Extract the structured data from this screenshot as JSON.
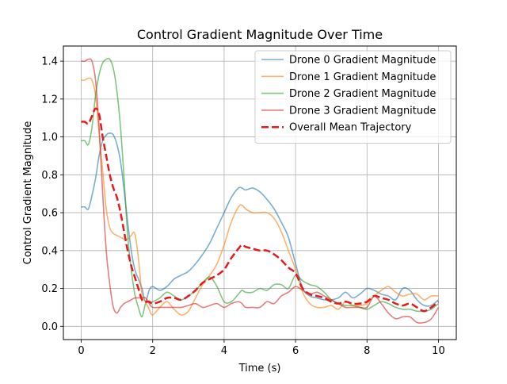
{
  "chart_data": {
    "type": "line",
    "title": "Control Gradient Magnitude Over Time",
    "xlabel": "Time (s)",
    "ylabel": "Control Gradient Magnitude",
    "xlim": [
      -0.5,
      10.5
    ],
    "ylim": [
      -0.07,
      1.48
    ],
    "xticks": [
      0,
      2,
      4,
      6,
      8,
      10
    ],
    "yticks": [
      0.0,
      0.2,
      0.4,
      0.6,
      0.8,
      1.0,
      1.2,
      1.4
    ],
    "xtick_labels": [
      "0",
      "2",
      "4",
      "6",
      "8",
      "10"
    ],
    "ytick_labels": [
      "0.0",
      "0.2",
      "0.4",
      "0.6",
      "0.8",
      "1.0",
      "1.2",
      "1.4"
    ],
    "grid": true,
    "legend_position": "top-right",
    "series": [
      {
        "name": "Drone 0 Gradient Magnitude",
        "color": "#1f77b4",
        "style": "solid",
        "x": [
          0,
          0.1,
          0.2,
          0.3,
          0.4,
          0.5,
          0.6,
          0.7,
          0.8,
          0.9,
          1.0,
          1.1,
          1.2,
          1.3,
          1.4,
          1.5,
          1.6,
          1.7,
          1.8,
          1.9,
          2.0,
          2.2,
          2.4,
          2.6,
          2.8,
          3.0,
          3.2,
          3.4,
          3.6,
          3.8,
          4.0,
          4.2,
          4.4,
          4.5,
          4.6,
          4.8,
          5.0,
          5.2,
          5.4,
          5.6,
          5.8,
          6.0,
          6.2,
          6.4,
          6.6,
          6.8,
          7.0,
          7.2,
          7.4,
          7.6,
          7.8,
          8.0,
          8.2,
          8.4,
          8.6,
          8.8,
          9.0,
          9.2,
          9.4,
          9.6,
          9.8,
          10.0
        ],
        "y": [
          0.63,
          0.63,
          0.62,
          0.69,
          0.78,
          0.9,
          0.98,
          1.01,
          1.02,
          1.01,
          0.96,
          0.87,
          0.72,
          0.55,
          0.4,
          0.3,
          0.25,
          0.2,
          0.13,
          0.19,
          0.21,
          0.19,
          0.21,
          0.25,
          0.27,
          0.29,
          0.33,
          0.38,
          0.44,
          0.52,
          0.6,
          0.68,
          0.73,
          0.73,
          0.72,
          0.73,
          0.71,
          0.67,
          0.62,
          0.55,
          0.47,
          0.33,
          0.2,
          0.16,
          0.15,
          0.14,
          0.14,
          0.15,
          0.18,
          0.15,
          0.17,
          0.2,
          0.19,
          0.17,
          0.16,
          0.14,
          0.2,
          0.19,
          0.14,
          0.11,
          0.11,
          0.14
        ]
      },
      {
        "name": "Drone 1 Gradient Magnitude",
        "color": "#ff7f0e",
        "style": "solid",
        "x": [
          0,
          0.1,
          0.2,
          0.3,
          0.4,
          0.5,
          0.6,
          0.7,
          0.8,
          0.9,
          1.0,
          1.1,
          1.2,
          1.3,
          1.4,
          1.5,
          1.6,
          1.7,
          1.8,
          1.9,
          2.0,
          2.2,
          2.4,
          2.6,
          2.8,
          3.0,
          3.2,
          3.4,
          3.6,
          3.8,
          4.0,
          4.2,
          4.4,
          4.5,
          4.6,
          4.8,
          5.0,
          5.2,
          5.4,
          5.6,
          5.8,
          6.0,
          6.2,
          6.4,
          6.6,
          6.8,
          7.0,
          7.2,
          7.4,
          7.6,
          7.8,
          8.0,
          8.2,
          8.4,
          8.6,
          8.8,
          9.0,
          9.2,
          9.4,
          9.6,
          9.8,
          10.0
        ],
        "y": [
          1.3,
          1.3,
          1.31,
          1.3,
          1.22,
          1.02,
          0.82,
          0.62,
          0.52,
          0.49,
          0.48,
          0.47,
          0.46,
          0.46,
          0.48,
          0.49,
          0.36,
          0.17,
          0.13,
          0.09,
          0.06,
          0.1,
          0.13,
          0.09,
          0.06,
          0.08,
          0.15,
          0.22,
          0.27,
          0.33,
          0.43,
          0.55,
          0.63,
          0.64,
          0.62,
          0.6,
          0.6,
          0.6,
          0.57,
          0.5,
          0.4,
          0.3,
          0.18,
          0.12,
          0.1,
          0.1,
          0.11,
          0.09,
          0.13,
          0.11,
          0.11,
          0.12,
          0.16,
          0.19,
          0.21,
          0.18,
          0.16,
          0.17,
          0.17,
          0.14,
          0.16,
          0.16
        ]
      },
      {
        "name": "Drone 2 Gradient Magnitude",
        "color": "#2ca02c",
        "style": "solid",
        "x": [
          0,
          0.1,
          0.2,
          0.3,
          0.4,
          0.5,
          0.6,
          0.7,
          0.8,
          0.9,
          1.0,
          1.1,
          1.2,
          1.3,
          1.4,
          1.5,
          1.6,
          1.7,
          1.8,
          1.9,
          2.0,
          2.2,
          2.4,
          2.6,
          2.8,
          3.0,
          3.2,
          3.4,
          3.6,
          3.8,
          4.0,
          4.2,
          4.4,
          4.5,
          4.6,
          4.8,
          5.0,
          5.2,
          5.4,
          5.6,
          5.8,
          6.0,
          6.2,
          6.4,
          6.6,
          6.8,
          7.0,
          7.2,
          7.4,
          7.6,
          7.8,
          8.0,
          8.2,
          8.4,
          8.6,
          8.8,
          9.0,
          9.2,
          9.4,
          9.6,
          9.8,
          10.0
        ],
        "y": [
          0.98,
          0.98,
          0.96,
          1.05,
          1.22,
          1.33,
          1.39,
          1.41,
          1.41,
          1.36,
          1.24,
          1.05,
          0.78,
          0.48,
          0.3,
          0.17,
          0.1,
          0.05,
          0.12,
          0.13,
          0.13,
          0.15,
          0.18,
          0.16,
          0.14,
          0.16,
          0.19,
          0.23,
          0.26,
          0.21,
          0.13,
          0.13,
          0.17,
          0.19,
          0.18,
          0.18,
          0.2,
          0.19,
          0.22,
          0.22,
          0.2,
          0.27,
          0.24,
          0.22,
          0.21,
          0.18,
          0.14,
          0.12,
          0.11,
          0.11,
          0.1,
          0.09,
          0.11,
          0.13,
          0.12,
          0.1,
          0.09,
          0.09,
          0.08,
          0.08,
          0.09,
          0.12
        ]
      },
      {
        "name": "Drone 3 Gradient Magnitude",
        "color": "#d62728",
        "style": "solid",
        "x": [
          0,
          0.1,
          0.2,
          0.3,
          0.4,
          0.5,
          0.6,
          0.7,
          0.8,
          0.9,
          1.0,
          1.1,
          1.2,
          1.3,
          1.4,
          1.5,
          1.6,
          1.7,
          1.8,
          1.9,
          2.0,
          2.2,
          2.4,
          2.6,
          2.8,
          3.0,
          3.2,
          3.4,
          3.6,
          3.8,
          4.0,
          4.2,
          4.4,
          4.5,
          4.6,
          4.8,
          5.0,
          5.2,
          5.4,
          5.6,
          5.8,
          6.0,
          6.2,
          6.4,
          6.6,
          6.8,
          7.0,
          7.2,
          7.4,
          7.6,
          7.8,
          8.0,
          8.2,
          8.4,
          8.6,
          8.8,
          9.0,
          9.2,
          9.4,
          9.6,
          9.8,
          10.0
        ],
        "y": [
          1.4,
          1.4,
          1.41,
          1.4,
          1.3,
          1.05,
          0.7,
          0.4,
          0.22,
          0.1,
          0.07,
          0.1,
          0.12,
          0.13,
          0.14,
          0.15,
          0.15,
          0.15,
          0.15,
          0.12,
          0.1,
          0.1,
          0.1,
          0.1,
          0.1,
          0.11,
          0.12,
          0.1,
          0.11,
          0.12,
          0.1,
          0.12,
          0.13,
          0.12,
          0.1,
          0.1,
          0.1,
          0.13,
          0.12,
          0.16,
          0.18,
          0.21,
          0.19,
          0.17,
          0.18,
          0.16,
          0.14,
          0.12,
          0.1,
          0.1,
          0.1,
          0.1,
          0.16,
          0.12,
          0.07,
          0.04,
          0.05,
          0.05,
          0.02,
          0.02,
          0.04,
          0.1
        ]
      },
      {
        "name": "Overall Mean Trajectory",
        "color": "#e41a1c",
        "style": "dashed",
        "x": [
          0,
          0.1,
          0.2,
          0.3,
          0.4,
          0.5,
          0.6,
          0.7,
          0.8,
          0.9,
          1.0,
          1.1,
          1.2,
          1.3,
          1.4,
          1.5,
          1.6,
          1.7,
          1.8,
          1.9,
          2.0,
          2.2,
          2.4,
          2.6,
          2.8,
          3.0,
          3.2,
          3.4,
          3.6,
          3.8,
          4.0,
          4.2,
          4.4,
          4.5,
          4.6,
          4.8,
          5.0,
          5.2,
          5.4,
          5.6,
          5.8,
          6.0,
          6.2,
          6.4,
          6.6,
          6.8,
          7.0,
          7.2,
          7.4,
          7.6,
          7.8,
          8.0,
          8.2,
          8.4,
          8.6,
          8.8,
          9.0,
          9.2,
          9.4,
          9.6,
          9.8,
          10.0
        ],
        "y": [
          1.08,
          1.08,
          1.07,
          1.11,
          1.15,
          1.12,
          1.0,
          0.9,
          0.8,
          0.73,
          0.68,
          0.6,
          0.5,
          0.4,
          0.32,
          0.26,
          0.2,
          0.14,
          0.13,
          0.13,
          0.12,
          0.13,
          0.15,
          0.15,
          0.14,
          0.16,
          0.19,
          0.23,
          0.25,
          0.27,
          0.3,
          0.36,
          0.41,
          0.43,
          0.42,
          0.41,
          0.4,
          0.4,
          0.38,
          0.35,
          0.31,
          0.28,
          0.2,
          0.17,
          0.16,
          0.15,
          0.13,
          0.12,
          0.13,
          0.12,
          0.12,
          0.13,
          0.16,
          0.15,
          0.14,
          0.12,
          0.11,
          0.12,
          0.1,
          0.08,
          0.1,
          0.13
        ]
      }
    ]
  }
}
